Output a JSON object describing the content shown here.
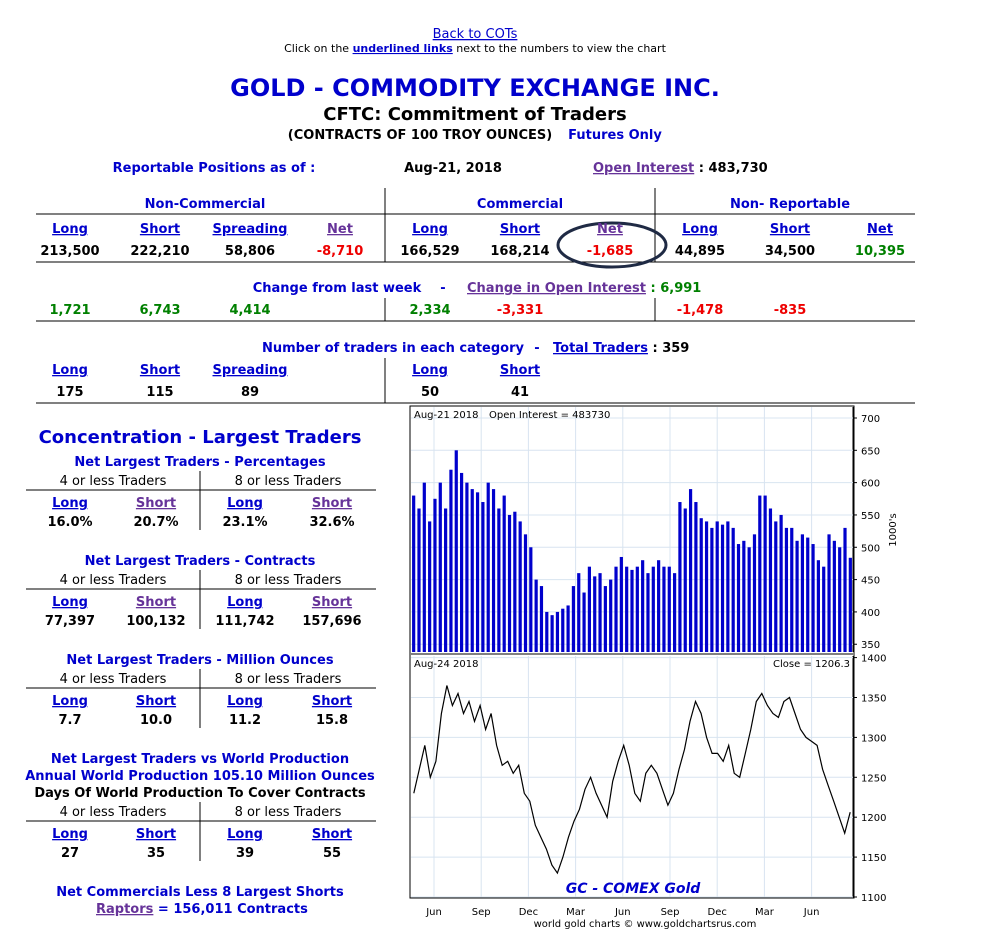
{
  "header": {
    "back_link": "Back to COTs",
    "instruction": [
      "Click on the ",
      "underlined links",
      " next to the numbers to view the chart"
    ],
    "title": "GOLD - COMMODITY EXCHANGE INC.",
    "subtitle": "CFTC: Commitment of Traders",
    "units": "(CONTRACTS OF 100 TROY OUNCES)",
    "futures_only": "Futures Only"
  },
  "report": {
    "label": "Reportable Positions as of :",
    "date": "Aug-21, 2018",
    "open_interest_link": "Open Interest",
    "open_interest": " : 483,730"
  },
  "positions": {
    "groups": [
      "Non-Commercial",
      "Commercial",
      "Non- Reportable"
    ],
    "columns": [
      "Long",
      "Short",
      "Spreading",
      "Net",
      "Long",
      "Short",
      "Net",
      "Long",
      "Short",
      "Net"
    ],
    "column_colors": [
      "#0000cc",
      "#0000cc",
      "#0000cc",
      "#663399",
      "#0000cc",
      "#0000cc",
      "#663399",
      "#0000cc",
      "#0000cc",
      "#0000cc"
    ],
    "values": [
      "213,500",
      "222,210",
      "58,806",
      "-8,710",
      "166,529",
      "168,214",
      "-1,685",
      "44,895",
      "34,500",
      "10,395"
    ],
    "colors": [
      "#000000",
      "#000000",
      "#000000",
      "#ee0000",
      "#000000",
      "#000000",
      "#ee0000",
      "#000000",
      "#000000",
      "#008000"
    ]
  },
  "changes": {
    "label": "Change from last week",
    "separator": "-",
    "open_interest_link": "Change in Open Interest",
    "open_interest": " : 6,991",
    "values": [
      "1,721",
      "6,743",
      "4,414",
      null,
      "2,334",
      "-3,331",
      null,
      "-1,478",
      "-835",
      null
    ],
    "colors": [
      "#008000",
      "#008000",
      "#008000",
      null,
      "#008000",
      "#ee0000",
      null,
      "#ee0000",
      "#ee0000",
      null
    ]
  },
  "traders": {
    "label": "Number of traders in each category",
    "separator": "-",
    "total_link": "Total Traders",
    "total": " : 359",
    "columns": [
      "Long",
      "Short",
      "Spreading",
      null,
      "Long",
      "Short"
    ],
    "values": [
      "175",
      "115",
      "89",
      null,
      "50",
      "41"
    ]
  },
  "concentration": {
    "title": "Concentration - Largest Traders",
    "blocks": [
      {
        "lines": [
          "Net Largest Traders - Percentages"
        ],
        "line_colors": [
          "#0000cc"
        ],
        "groups": [
          "4 or less Traders",
          "8 or less Traders"
        ],
        "columns": [
          "Long",
          "Short",
          "Long",
          "Short"
        ],
        "column_colors": [
          "#0000cc",
          "#663399",
          "#0000cc",
          "#663399"
        ],
        "values": [
          "16.0%",
          "20.7%",
          "23.1%",
          "32.6%"
        ]
      },
      {
        "lines": [
          "Net Largest Traders - Contracts"
        ],
        "line_colors": [
          "#0000cc"
        ],
        "groups": [
          "4 or less Traders",
          "8 or less Traders"
        ],
        "columns": [
          "Long",
          "Short",
          "Long",
          "Short"
        ],
        "column_colors": [
          "#0000cc",
          "#663399",
          "#0000cc",
          "#663399"
        ],
        "values": [
          "77,397",
          "100,132",
          "111,742",
          "157,696"
        ]
      },
      {
        "lines": [
          "Net Largest Traders - Million Ounces"
        ],
        "line_colors": [
          "#0000cc"
        ],
        "groups": [
          "4 or less Traders",
          "8 or less Traders"
        ],
        "columns": [
          "Long",
          "Short",
          "Long",
          "Short"
        ],
        "column_colors": [
          "#0000cc",
          "#0000cc",
          "#0000cc",
          "#0000cc"
        ],
        "values": [
          "7.7",
          "10.0",
          "11.2",
          "15.8"
        ]
      },
      {
        "lines": [
          "Net Largest Traders vs World Production",
          "Annual World Production 105.10 Million Ounces",
          "Days Of World Production To Cover Contracts"
        ],
        "line_colors": [
          "#0000cc",
          "#0000cc",
          "#000000"
        ],
        "groups": [
          "4 or less Traders",
          "8 or less Traders"
        ],
        "columns": [
          "Long",
          "Short",
          "Long",
          "Short"
        ],
        "column_colors": [
          "#0000cc",
          "#0000cc",
          "#0000cc",
          "#0000cc"
        ],
        "values": [
          "27",
          "35",
          "39",
          "55"
        ]
      }
    ],
    "footer": "Net Commercials Less 8 Largest Shorts",
    "raptors_link": "Raptors",
    "raptors": " = 156,011 Contracts"
  },
  "chart_data": [
    {
      "type": "bar",
      "annotations": [
        "Aug-21  2018",
        "Open Interest = 483730"
      ],
      "y_label": "1000's",
      "color": "#0000cc",
      "values": [
        580,
        560,
        600,
        540,
        575,
        600,
        560,
        620,
        650,
        615,
        600,
        590,
        585,
        570,
        600,
        590,
        560,
        580,
        550,
        555,
        540,
        520,
        500,
        450,
        440,
        400,
        395,
        400,
        405,
        410,
        440,
        460,
        430,
        470,
        455,
        460,
        440,
        450,
        470,
        485,
        470,
        465,
        470,
        480,
        460,
        470,
        480,
        470,
        470,
        460,
        570,
        560,
        590,
        570,
        545,
        540,
        530,
        540,
        535,
        540,
        530,
        505,
        510,
        500,
        520,
        580,
        580,
        560,
        540,
        550,
        530,
        530,
        510,
        520,
        515,
        505,
        480,
        470,
        520,
        510,
        500,
        530,
        483.73
      ],
      "ylim": [
        338,
        717
      ],
      "yticks": [
        350,
        400,
        450,
        500,
        550,
        600,
        650,
        700
      ],
      "grid": true
    },
    {
      "type": "line",
      "annotations": [
        "Aug-24  2018",
        "Close = 1206.3"
      ],
      "title": "GC - COMEX Gold",
      "source": "world gold charts © www.goldchartsrus.com",
      "color": "#000000",
      "values": [
        1230,
        1260,
        1290,
        1250,
        1270,
        1330,
        1365,
        1340,
        1355,
        1330,
        1345,
        1320,
        1340,
        1310,
        1330,
        1290,
        1265,
        1270,
        1255,
        1265,
        1230,
        1220,
        1190,
        1175,
        1160,
        1140,
        1130,
        1150,
        1175,
        1195,
        1210,
        1235,
        1250,
        1230,
        1215,
        1200,
        1245,
        1270,
        1290,
        1265,
        1230,
        1220,
        1255,
        1265,
        1255,
        1235,
        1215,
        1230,
        1260,
        1285,
        1320,
        1345,
        1330,
        1300,
        1280,
        1280,
        1270,
        1290,
        1255,
        1250,
        1280,
        1310,
        1345,
        1355,
        1340,
        1330,
        1325,
        1345,
        1350,
        1330,
        1310,
        1300,
        1295,
        1290,
        1260,
        1240,
        1220,
        1200,
        1180,
        1206.3
      ],
      "ylim": [
        1100,
        1402
      ],
      "yticks": [
        1100,
        1150,
        1200,
        1250,
        1300,
        1350,
        1400
      ],
      "grid": true,
      "xtick_labels": [
        "Jun",
        "Sep",
        "Dec",
        "Mar",
        "Jun",
        "Sep",
        "Dec",
        "Mar",
        "Jun"
      ]
    }
  ]
}
